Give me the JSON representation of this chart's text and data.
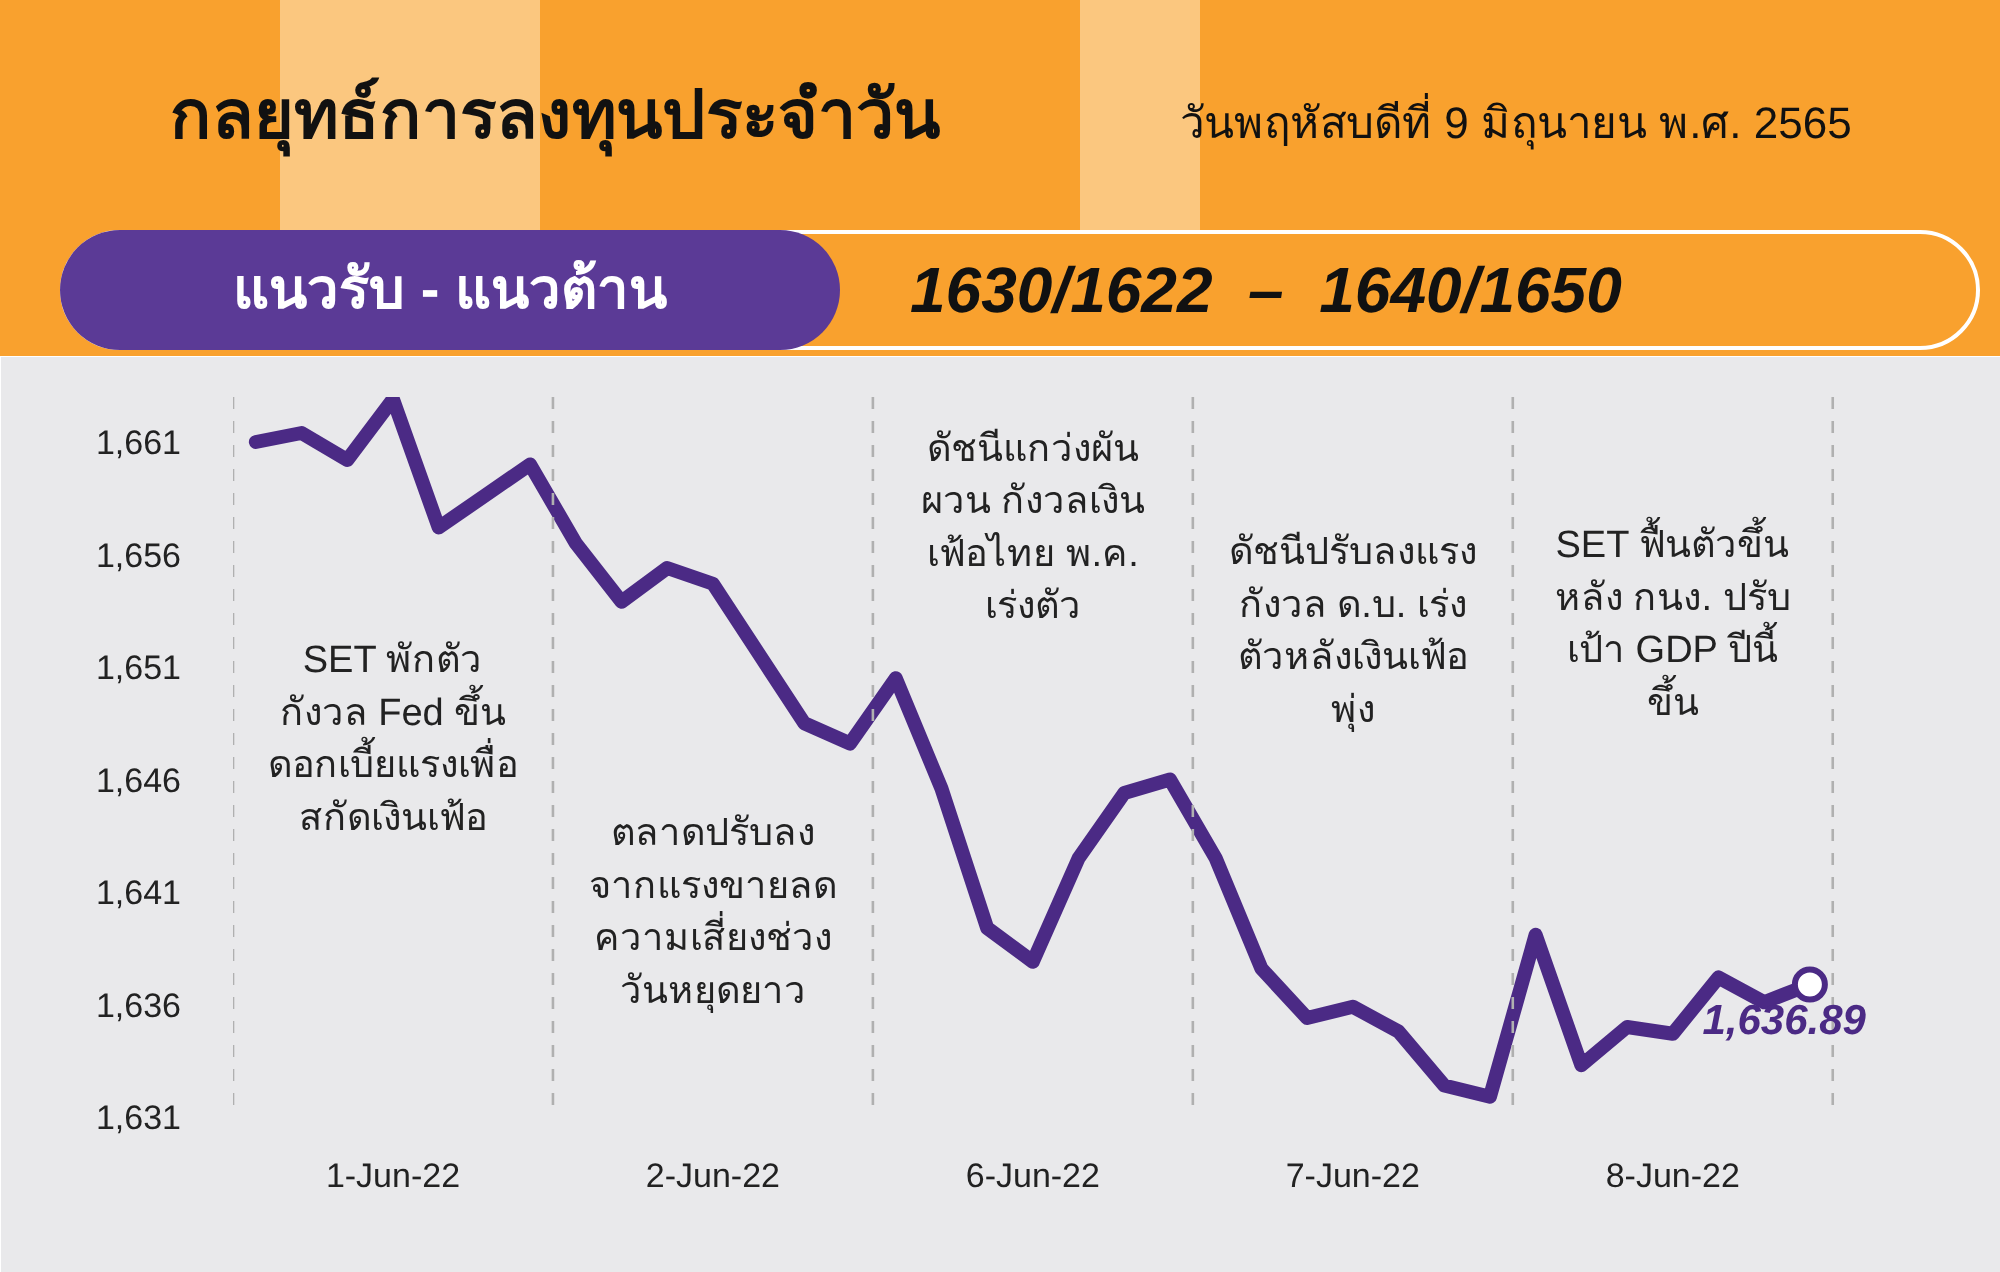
{
  "chart_data": {
    "type": "line",
    "title": "กลยุทธ์การลงทุนประจำวัน",
    "subtitle": "วันพฤหัสบดีที่ 9 มิถุนายน พ.ศ. 2565",
    "annotations": [
      "แนวรับ - แนวต้าน",
      "1630/1622  –  1640/1650",
      "SET พักตัว\nกังวล Fed ขึ้น\nดอกเบี้ยแรงเพื่อ\nสกัดเงินเฟ้อ",
      "ตลาดปรับลง\nจากแรงขายลด\nความเสี่ยงช่วง\nวันหยุดยาว",
      "ดัชนีแกว่งผัน\nผวน กังวลเงิน\nเฟ้อไทย พ.ค.\nเร่งตัว",
      "ดัชนีปรับลงแรง\nกังวล ด.บ. เร่ง\nตัวหลังเงินเฟ้อ\nพุ่ง",
      "SET ฟื้นตัวขึ้น\nหลัง กนง. ปรับ\nเป้า GDP ปีนี้\nขึ้น",
      "1,636.89"
    ],
    "categories": [
      null,
      null,
      null,
      "1-Jun-22",
      null,
      null,
      null,
      null,
      null,
      null,
      "2-Jun-22",
      null,
      null,
      null,
      null,
      null,
      null,
      "6-Jun-22",
      null,
      null,
      null,
      null,
      null,
      null,
      "7-Jun-22",
      null,
      null,
      null,
      null,
      null,
      null,
      "8-Jun-22",
      null,
      null,
      null
    ],
    "series": [
      {
        "color": "#4b2a85",
        "values": [
          1661.0,
          1661.4,
          1660.2,
          1662.9,
          1657.2,
          1658.6,
          1660.0,
          1656.5,
          1653.9,
          1655.4,
          1654.7,
          1651.6,
          1648.5,
          1647.6,
          1650.5,
          1645.6,
          1639.4,
          1637.9,
          1642.5,
          1645.4,
          1646.0,
          1642.5,
          1637.6,
          1635.4,
          1635.9,
          1634.8,
          1632.4,
          1631.9,
          1639.1,
          1633.3,
          1635.0,
          1634.7,
          1637.2,
          1636.1,
          1636.89
        ]
      }
    ],
    "ylim": [
      1631,
      1663
    ],
    "yticks": [
      {
        "value": 1631,
        "label": "1,631"
      },
      {
        "value": 1636,
        "label": "1,636"
      },
      {
        "value": 1641,
        "label": "1,641"
      },
      {
        "value": 1646,
        "label": "1,646"
      },
      {
        "value": 1651,
        "label": "1,651"
      },
      {
        "value": 1656,
        "label": "1,656"
      },
      {
        "value": 1661,
        "label": "1,661"
      }
    ],
    "line_style": "solid",
    "grid": "x"
  }
}
